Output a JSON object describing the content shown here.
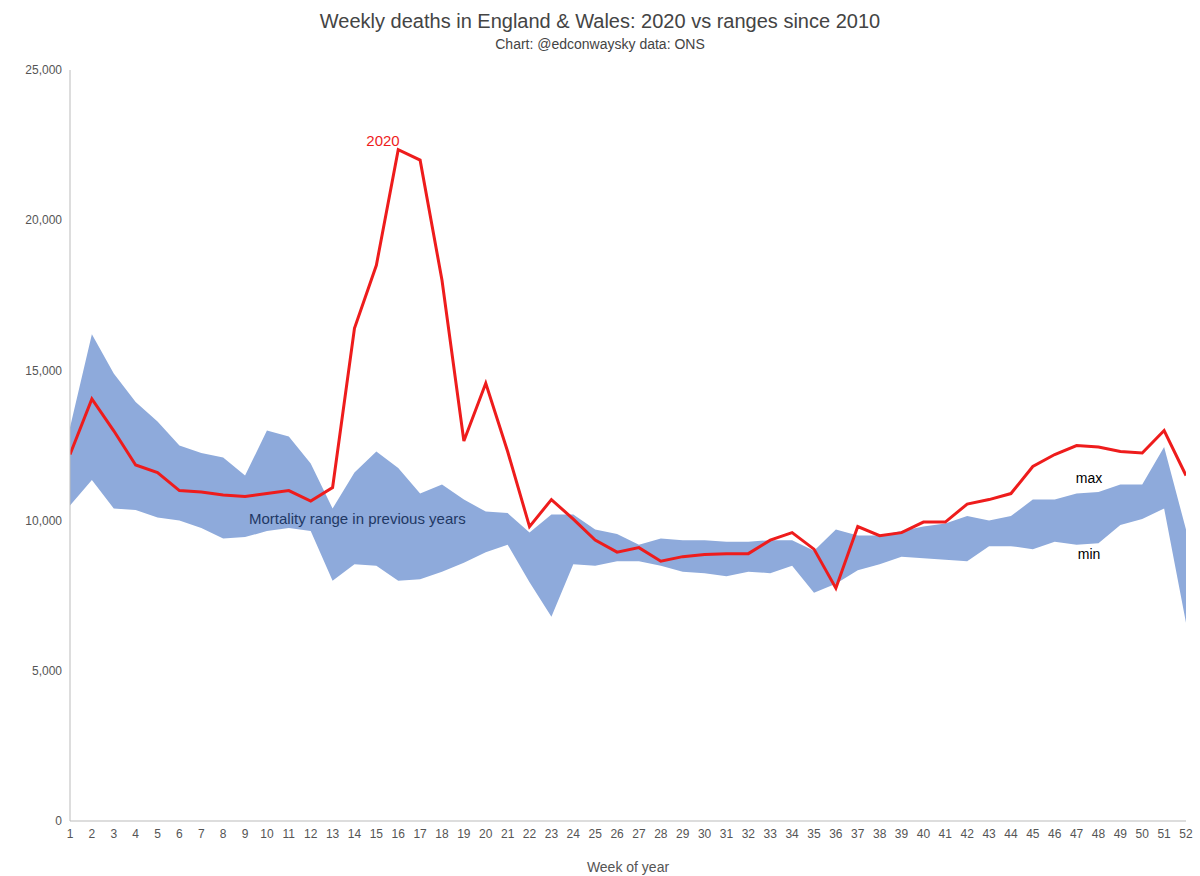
{
  "chart_data": {
    "type": "line",
    "title": "Weekly deaths in England & Wales: 2020 vs ranges since 2010",
    "subtitle": "Chart: @edconwaysky data: ONS",
    "x_label": "Week of year",
    "x": [
      1,
      2,
      3,
      4,
      5,
      6,
      7,
      8,
      9,
      10,
      11,
      12,
      13,
      14,
      15,
      16,
      17,
      18,
      19,
      20,
      21,
      22,
      23,
      24,
      25,
      26,
      27,
      28,
      29,
      30,
      31,
      32,
      33,
      34,
      35,
      36,
      37,
      38,
      39,
      40,
      41,
      42,
      43,
      44,
      45,
      46,
      47,
      48,
      49,
      50,
      51,
      52
    ],
    "xlim": [
      1,
      52
    ],
    "xticks": [
      1,
      2,
      3,
      4,
      5,
      6,
      7,
      8,
      9,
      10,
      11,
      12,
      13,
      14,
      15,
      16,
      17,
      18,
      19,
      20,
      21,
      22,
      23,
      24,
      25,
      26,
      27,
      28,
      29,
      30,
      31,
      32,
      33,
      34,
      35,
      36,
      37,
      38,
      39,
      40,
      41,
      42,
      43,
      44,
      45,
      46,
      47,
      48,
      49,
      50,
      51,
      52
    ],
    "ylim": [
      0,
      25000
    ],
    "yticks": [
      0,
      {
        "value": 5000,
        "label": "5,000"
      },
      {
        "value": 10000,
        "label": "10,000"
      },
      {
        "value": 15000,
        "label": "15,000"
      },
      {
        "value": 20000,
        "label": "20,000"
      },
      {
        "value": 25000,
        "label": "25,000"
      }
    ],
    "grid": false,
    "series": [
      {
        "name": "2020",
        "type": "line",
        "color": "#ee1c1c",
        "values": [
          12200,
          14050,
          12990,
          11850,
          11600,
          11000,
          10950,
          10850,
          10800,
          10900,
          11000,
          10650,
          11100,
          16400,
          18500,
          22350,
          22000,
          18000,
          12650,
          14570,
          12300,
          9800,
          10700,
          10050,
          9350,
          8950,
          9100,
          8650,
          8800,
          8870,
          8900,
          8900,
          9350,
          9600,
          9050,
          7750,
          9800,
          9500,
          9600,
          9950,
          9950,
          10550,
          10700,
          10900,
          11800,
          12200,
          12500,
          12450,
          12300,
          12250,
          13000,
          11500
        ]
      }
    ],
    "range": {
      "name": "Mortality range in previous years",
      "type": "area",
      "color": "#8eaadb",
      "max_label": "max",
      "min_label": "min",
      "max": [
        13100,
        16200,
        14900,
        13950,
        13300,
        12500,
        12250,
        12100,
        11500,
        13000,
        12800,
        11900,
        10400,
        11600,
        12300,
        11750,
        10900,
        11200,
        10700,
        10300,
        10250,
        9600,
        10200,
        10200,
        9700,
        9550,
        9200,
        9400,
        9350,
        9350,
        9300,
        9300,
        9350,
        9350,
        9000,
        9700,
        9500,
        9500,
        9650,
        9800,
        9900,
        10150,
        10000,
        10150,
        10700,
        10700,
        10900,
        10950,
        11200,
        11200,
        12450,
        9700
      ],
      "min": [
        10500,
        11350,
        10400,
        10350,
        10100,
        10000,
        9750,
        9400,
        9450,
        9650,
        9750,
        9650,
        8000,
        8550,
        8500,
        8000,
        8050,
        8300,
        8600,
        8950,
        9200,
        7950,
        6800,
        8550,
        8500,
        8650,
        8650,
        8500,
        8300,
        8250,
        8150,
        8300,
        8250,
        8500,
        7600,
        7900,
        8350,
        8550,
        8800,
        8750,
        8700,
        8650,
        9150,
        9150,
        9050,
        9300,
        9200,
        9250,
        9850,
        10050,
        10400,
        6600
      ]
    }
  }
}
